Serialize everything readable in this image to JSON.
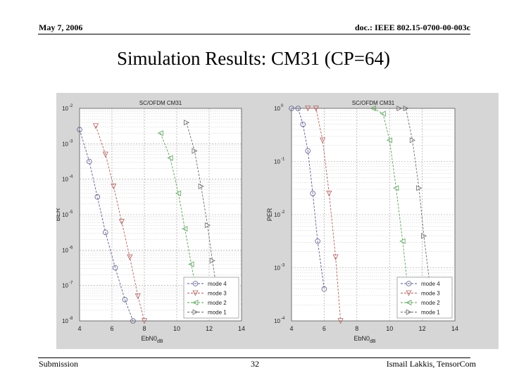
{
  "header": {
    "date": "May 7, 2006",
    "doc": "doc.: IEEE 802.15-0700-00-003c"
  },
  "slide_title": "Simulation Results: CM31 (CP=64)",
  "footer": {
    "left": "Submission",
    "page": "32",
    "right": "Ismail Lakkis, TensorCom"
  },
  "chart_data": [
    {
      "type": "line",
      "title": "SC/OFDM CM31",
      "ylabel": "BER",
      "xlabel": "EbN0",
      "xlabel_sub": "dB",
      "xlim": [
        4,
        14
      ],
      "xticks": [
        "4",
        "6",
        "8",
        "10",
        "12",
        "14"
      ],
      "ylog": true,
      "ylim_exp": [
        -8,
        -2
      ],
      "yticks": [
        {
          "base": "10",
          "exp": "-2"
        },
        {
          "base": "10",
          "exp": "-3"
        },
        {
          "base": "10",
          "exp": "-4"
        },
        {
          "base": "10",
          "exp": "-5"
        },
        {
          "base": "10",
          "exp": "-6"
        },
        {
          "base": "10",
          "exp": "-7"
        },
        {
          "base": "10",
          "exp": "-8"
        }
      ],
      "legend_position": "bottom-right",
      "grid": true,
      "series": [
        {
          "name": "mode 4",
          "color": "#5a5a8a",
          "x": [
            4.0,
            4.6,
            5.1,
            5.6,
            6.2,
            6.8,
            7.3
          ],
          "y": [
            -2.6,
            -3.5,
            -4.5,
            -5.5,
            -6.5,
            -7.4,
            -8.0
          ]
        },
        {
          "name": "mode 3",
          "color": "#b06060",
          "x": [
            5.0,
            5.6,
            6.1,
            6.6,
            7.1,
            7.6,
            8.0
          ],
          "y": [
            -2.5,
            -3.3,
            -4.2,
            -5.2,
            -6.2,
            -7.3,
            -8.0
          ]
        },
        {
          "name": "mode 2",
          "color": "#5aa05a",
          "x": [
            9.0,
            9.6,
            10.1,
            10.5,
            10.9,
            11.3
          ],
          "y": [
            -2.7,
            -3.4,
            -4.4,
            -5.4,
            -6.4,
            -7.4
          ]
        },
        {
          "name": "mode 1",
          "color": "#6a6a6a",
          "x": [
            10.6,
            11.1,
            11.5,
            11.9,
            12.2,
            12.5
          ],
          "y": [
            -2.4,
            -3.2,
            -4.2,
            -5.3,
            -6.3,
            -7.2
          ]
        }
      ]
    },
    {
      "type": "line",
      "title": "SC/OFDM CM31",
      "ylabel": "PER",
      "xlabel": "EbN0",
      "xlabel_sub": "dB",
      "xlim": [
        4,
        14
      ],
      "xticks": [
        "4",
        "6",
        "8",
        "10",
        "12",
        "14"
      ],
      "ylog": true,
      "ylim_exp": [
        -4,
        0
      ],
      "yticks": [
        {
          "base": "10",
          "exp": "0"
        },
        {
          "base": "10",
          "exp": "-1"
        },
        {
          "base": "10",
          "exp": "-2"
        },
        {
          "base": "10",
          "exp": "-3"
        },
        {
          "base": "10",
          "exp": "-4"
        }
      ],
      "legend_position": "bottom-right",
      "grid": true,
      "series": [
        {
          "name": "mode 4",
          "color": "#5a5a8a",
          "x": [
            4.0,
            4.4,
            4.7,
            5.0,
            5.3,
            5.6,
            6.0
          ],
          "y": [
            0.0,
            0.0,
            -0.3,
            -0.8,
            -1.6,
            -2.5,
            -3.4
          ]
        },
        {
          "name": "mode 3",
          "color": "#b06060",
          "x": [
            5.0,
            5.5,
            5.9,
            6.3,
            6.7,
            7.0
          ],
          "y": [
            0.0,
            0.0,
            -0.6,
            -1.6,
            -2.8,
            -4.0
          ]
        },
        {
          "name": "mode 2",
          "color": "#5aa05a",
          "x": [
            9.0,
            9.6,
            10.0,
            10.4,
            10.8,
            11.2
          ],
          "y": [
            0.0,
            -0.1,
            -0.6,
            -1.5,
            -2.5,
            -3.6
          ]
        },
        {
          "name": "mode 1",
          "color": "#6a6a6a",
          "x": [
            10.6,
            11.0,
            11.4,
            11.8,
            12.1,
            12.5
          ],
          "y": [
            0.0,
            0.0,
            -0.6,
            -1.5,
            -2.4,
            -3.4
          ]
        }
      ]
    }
  ]
}
